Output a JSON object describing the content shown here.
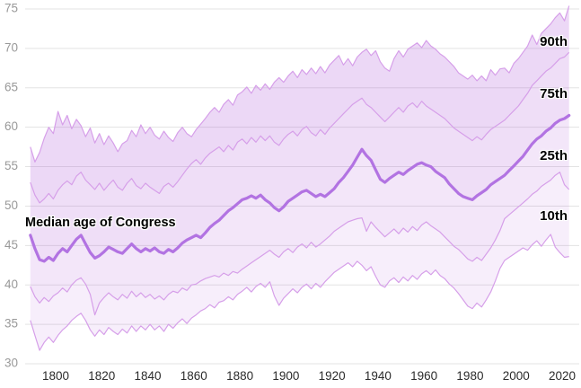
{
  "annotation": {
    "median_label": "Median age of Congress"
  },
  "percentile_labels": {
    "p90": "90th",
    "p75": "75th",
    "p25": "25th",
    "p10": "10th"
  },
  "colors": {
    "background": "#ffffff",
    "gridline": "#e3e3e3",
    "median_line": "#b273e2",
    "percentile_line": "#d69fe9",
    "band_base": "168,77,214",
    "band_alphas": [
      0.22,
      0.185,
      0.14,
      0.095
    ],
    "y_tick_text": "#999999",
    "x_tick_text": "#2b2b2b",
    "annotation_text": "#000000"
  },
  "chart_data": {
    "type": "area",
    "title": "Median age of Congress",
    "xlabel": "",
    "ylabel": "",
    "x_start": 1789,
    "x_step": 2,
    "x_end": 2023,
    "xlim": [
      1787.5,
      2028
    ],
    "ylim": [
      30,
      75
    ],
    "x_ticks": [
      1800,
      1820,
      1840,
      1860,
      1880,
      1900,
      1920,
      1940,
      1960,
      1980,
      2000,
      2020
    ],
    "y_ticks": [
      30,
      35,
      40,
      45,
      50,
      55,
      60,
      65,
      70,
      75
    ],
    "grid": "horizontal",
    "legend_position": "inline-right",
    "series": [
      {
        "name": "90th percentile",
        "values": [
          57.5,
          55.6,
          56.8,
          58.6,
          60.0,
          59.2,
          62.0,
          60.3,
          61.5,
          59.8,
          61.0,
          60.2,
          58.8,
          59.9,
          58.0,
          59.2,
          57.8,
          58.9,
          58.0,
          56.9,
          57.9,
          58.3,
          59.6,
          58.8,
          60.3,
          59.2,
          60.0,
          59.0,
          58.5,
          59.5,
          58.7,
          58.2,
          59.3,
          60.0,
          59.2,
          58.8,
          59.7,
          60.4,
          61.1,
          61.9,
          62.5,
          61.9,
          62.9,
          63.5,
          62.8,
          64.1,
          64.5,
          65.1,
          64.3,
          65.3,
          64.7,
          65.5,
          64.8,
          65.7,
          66.3,
          65.7,
          66.5,
          67.1,
          66.3,
          67.3,
          66.7,
          67.5,
          66.8,
          67.7,
          66.9,
          67.9,
          68.5,
          69.1,
          67.9,
          68.7,
          67.8,
          68.9,
          69.5,
          69.9,
          69.1,
          69.7,
          68.3,
          67.5,
          67.1,
          68.7,
          69.7,
          68.9,
          69.9,
          70.3,
          70.7,
          70.1,
          71.0,
          70.3,
          69.9,
          69.3,
          68.9,
          68.3,
          67.7,
          66.9,
          66.5,
          66.1,
          66.6,
          65.9,
          66.5,
          65.9,
          67.3,
          66.6,
          67.4,
          67.5,
          66.9,
          68.1,
          68.7,
          69.5,
          70.3,
          71.7,
          70.5,
          71.9,
          72.5,
          73.1,
          73.9,
          74.5,
          73.5,
          75.4
        ]
      },
      {
        "name": "75th percentile",
        "values": [
          53.0,
          51.4,
          50.4,
          50.9,
          51.6,
          50.9,
          52.0,
          52.7,
          53.2,
          52.7,
          53.8,
          54.3,
          53.3,
          52.7,
          52.1,
          52.9,
          52.0,
          52.7,
          53.3,
          52.4,
          52.0,
          52.9,
          53.5,
          52.6,
          52.2,
          52.9,
          52.4,
          52.0,
          51.6,
          52.5,
          52.9,
          52.4,
          53.1,
          53.9,
          54.7,
          55.4,
          55.9,
          55.3,
          56.1,
          56.7,
          57.1,
          57.5,
          56.9,
          57.7,
          57.1,
          58.1,
          58.5,
          57.9,
          58.7,
          58.1,
          58.9,
          58.3,
          58.9,
          58.1,
          57.7,
          58.5,
          59.1,
          59.5,
          58.9,
          59.7,
          60.1,
          59.3,
          58.9,
          59.7,
          59.1,
          59.9,
          60.5,
          61.1,
          61.7,
          62.3,
          62.9,
          63.3,
          63.7,
          62.9,
          62.5,
          61.9,
          61.3,
          60.7,
          61.3,
          61.9,
          62.5,
          61.9,
          62.7,
          63.1,
          62.5,
          63.3,
          62.7,
          62.3,
          61.9,
          61.5,
          61.1,
          60.5,
          59.9,
          59.5,
          59.1,
          58.7,
          58.3,
          58.8,
          58.4,
          59.1,
          59.7,
          60.1,
          60.5,
          60.9,
          61.5,
          62.1,
          62.7,
          63.5,
          64.3,
          65.3,
          65.9,
          66.5,
          67.1,
          67.5,
          68.1,
          68.7,
          68.9,
          69.5
        ]
      },
      {
        "name": "Median",
        "values": [
          46.3,
          44.6,
          43.2,
          43.0,
          43.5,
          43.1,
          44.0,
          44.6,
          44.2,
          45.0,
          45.8,
          46.3,
          45.2,
          44.1,
          43.4,
          43.7,
          44.2,
          44.8,
          44.5,
          44.2,
          44.0,
          44.6,
          45.2,
          44.6,
          44.2,
          44.6,
          44.3,
          44.7,
          44.2,
          44.0,
          44.5,
          44.2,
          44.7,
          45.3,
          45.7,
          46.0,
          46.3,
          46.0,
          46.6,
          47.3,
          47.8,
          48.2,
          48.8,
          49.4,
          49.8,
          50.3,
          50.8,
          51.0,
          51.3,
          51.0,
          51.4,
          50.8,
          50.4,
          49.8,
          49.4,
          49.9,
          50.6,
          51.0,
          51.4,
          51.8,
          52.0,
          51.6,
          51.2,
          51.5,
          51.2,
          51.7,
          52.2,
          53.0,
          53.6,
          54.4,
          55.2,
          56.2,
          57.2,
          56.4,
          55.8,
          54.6,
          53.4,
          53.0,
          53.5,
          53.9,
          54.3,
          54.0,
          54.5,
          54.9,
          55.3,
          55.5,
          55.2,
          55.0,
          54.4,
          54.0,
          53.6,
          52.8,
          52.2,
          51.6,
          51.2,
          51.0,
          50.8,
          51.3,
          51.7,
          52.1,
          52.7,
          53.1,
          53.5,
          53.9,
          54.5,
          55.1,
          55.7,
          56.3,
          57.1,
          57.9,
          58.5,
          58.9,
          59.5,
          59.9,
          60.5,
          60.9,
          61.1,
          61.5
        ]
      },
      {
        "name": "25th percentile",
        "values": [
          39.8,
          38.5,
          37.7,
          38.4,
          37.9,
          38.6,
          39.0,
          39.6,
          39.1,
          40.0,
          40.6,
          40.9,
          40.1,
          38.8,
          36.2,
          37.7,
          38.4,
          39.0,
          38.5,
          38.1,
          38.8,
          38.3,
          39.2,
          38.5,
          39.0,
          38.4,
          38.8,
          38.2,
          38.6,
          38.1,
          38.8,
          39.2,
          39.0,
          39.6,
          39.3,
          40.0,
          40.1,
          40.5,
          40.8,
          41.0,
          41.2,
          41.0,
          41.5,
          41.2,
          41.7,
          41.5,
          42.0,
          42.4,
          42.8,
          43.2,
          43.6,
          44.0,
          44.4,
          43.9,
          43.5,
          44.2,
          44.6,
          44.1,
          44.8,
          45.2,
          44.7,
          45.4,
          44.8,
          45.2,
          45.7,
          46.2,
          46.8,
          47.2,
          47.6,
          48.0,
          48.2,
          48.4,
          48.5,
          46.8,
          48.0,
          47.3,
          46.7,
          46.1,
          46.6,
          47.1,
          46.5,
          47.2,
          46.7,
          47.4,
          46.9,
          47.6,
          48.0,
          47.5,
          47.1,
          46.7,
          46.1,
          45.5,
          44.9,
          44.5,
          43.9,
          43.3,
          43.0,
          43.5,
          43.1,
          43.9,
          44.7,
          45.7,
          46.9,
          48.4,
          48.9,
          49.4,
          49.9,
          50.4,
          50.9,
          51.5,
          51.9,
          52.5,
          52.9,
          53.3,
          53.9,
          54.3,
          52.7,
          52.1
        ]
      },
      {
        "name": "10th percentile",
        "values": [
          35.5,
          33.6,
          31.7,
          32.7,
          33.4,
          32.7,
          33.6,
          34.3,
          34.8,
          35.5,
          36.0,
          36.4,
          35.5,
          34.3,
          33.5,
          34.3,
          33.7,
          34.6,
          34.1,
          33.7,
          34.4,
          33.9,
          34.8,
          34.1,
          34.8,
          34.3,
          35.0,
          34.3,
          34.8,
          34.1,
          35.0,
          34.5,
          35.2,
          35.7,
          35.1,
          35.8,
          36.2,
          36.7,
          37.0,
          37.5,
          37.1,
          37.8,
          38.0,
          38.5,
          38.1,
          38.8,
          39.2,
          39.7,
          39.1,
          39.8,
          40.2,
          39.7,
          40.4,
          38.6,
          37.4,
          38.3,
          38.9,
          39.5,
          39.0,
          39.7,
          40.1,
          39.5,
          40.2,
          39.7,
          40.4,
          41.0,
          41.6,
          42.0,
          42.4,
          42.8,
          42.3,
          43.0,
          42.5,
          41.8,
          42.3,
          41.1,
          40.0,
          39.7,
          40.5,
          40.9,
          40.3,
          41.0,
          40.5,
          41.2,
          40.7,
          41.4,
          41.8,
          41.3,
          41.9,
          41.2,
          40.8,
          40.1,
          39.6,
          38.9,
          38.1,
          37.3,
          37.0,
          37.7,
          37.2,
          38.1,
          39.1,
          40.5,
          42.1,
          43.1,
          43.5,
          43.9,
          44.3,
          44.7,
          44.4,
          45.1,
          45.6,
          44.9,
          45.7,
          46.4,
          44.8,
          44.1,
          43.5,
          43.6
        ]
      }
    ]
  }
}
